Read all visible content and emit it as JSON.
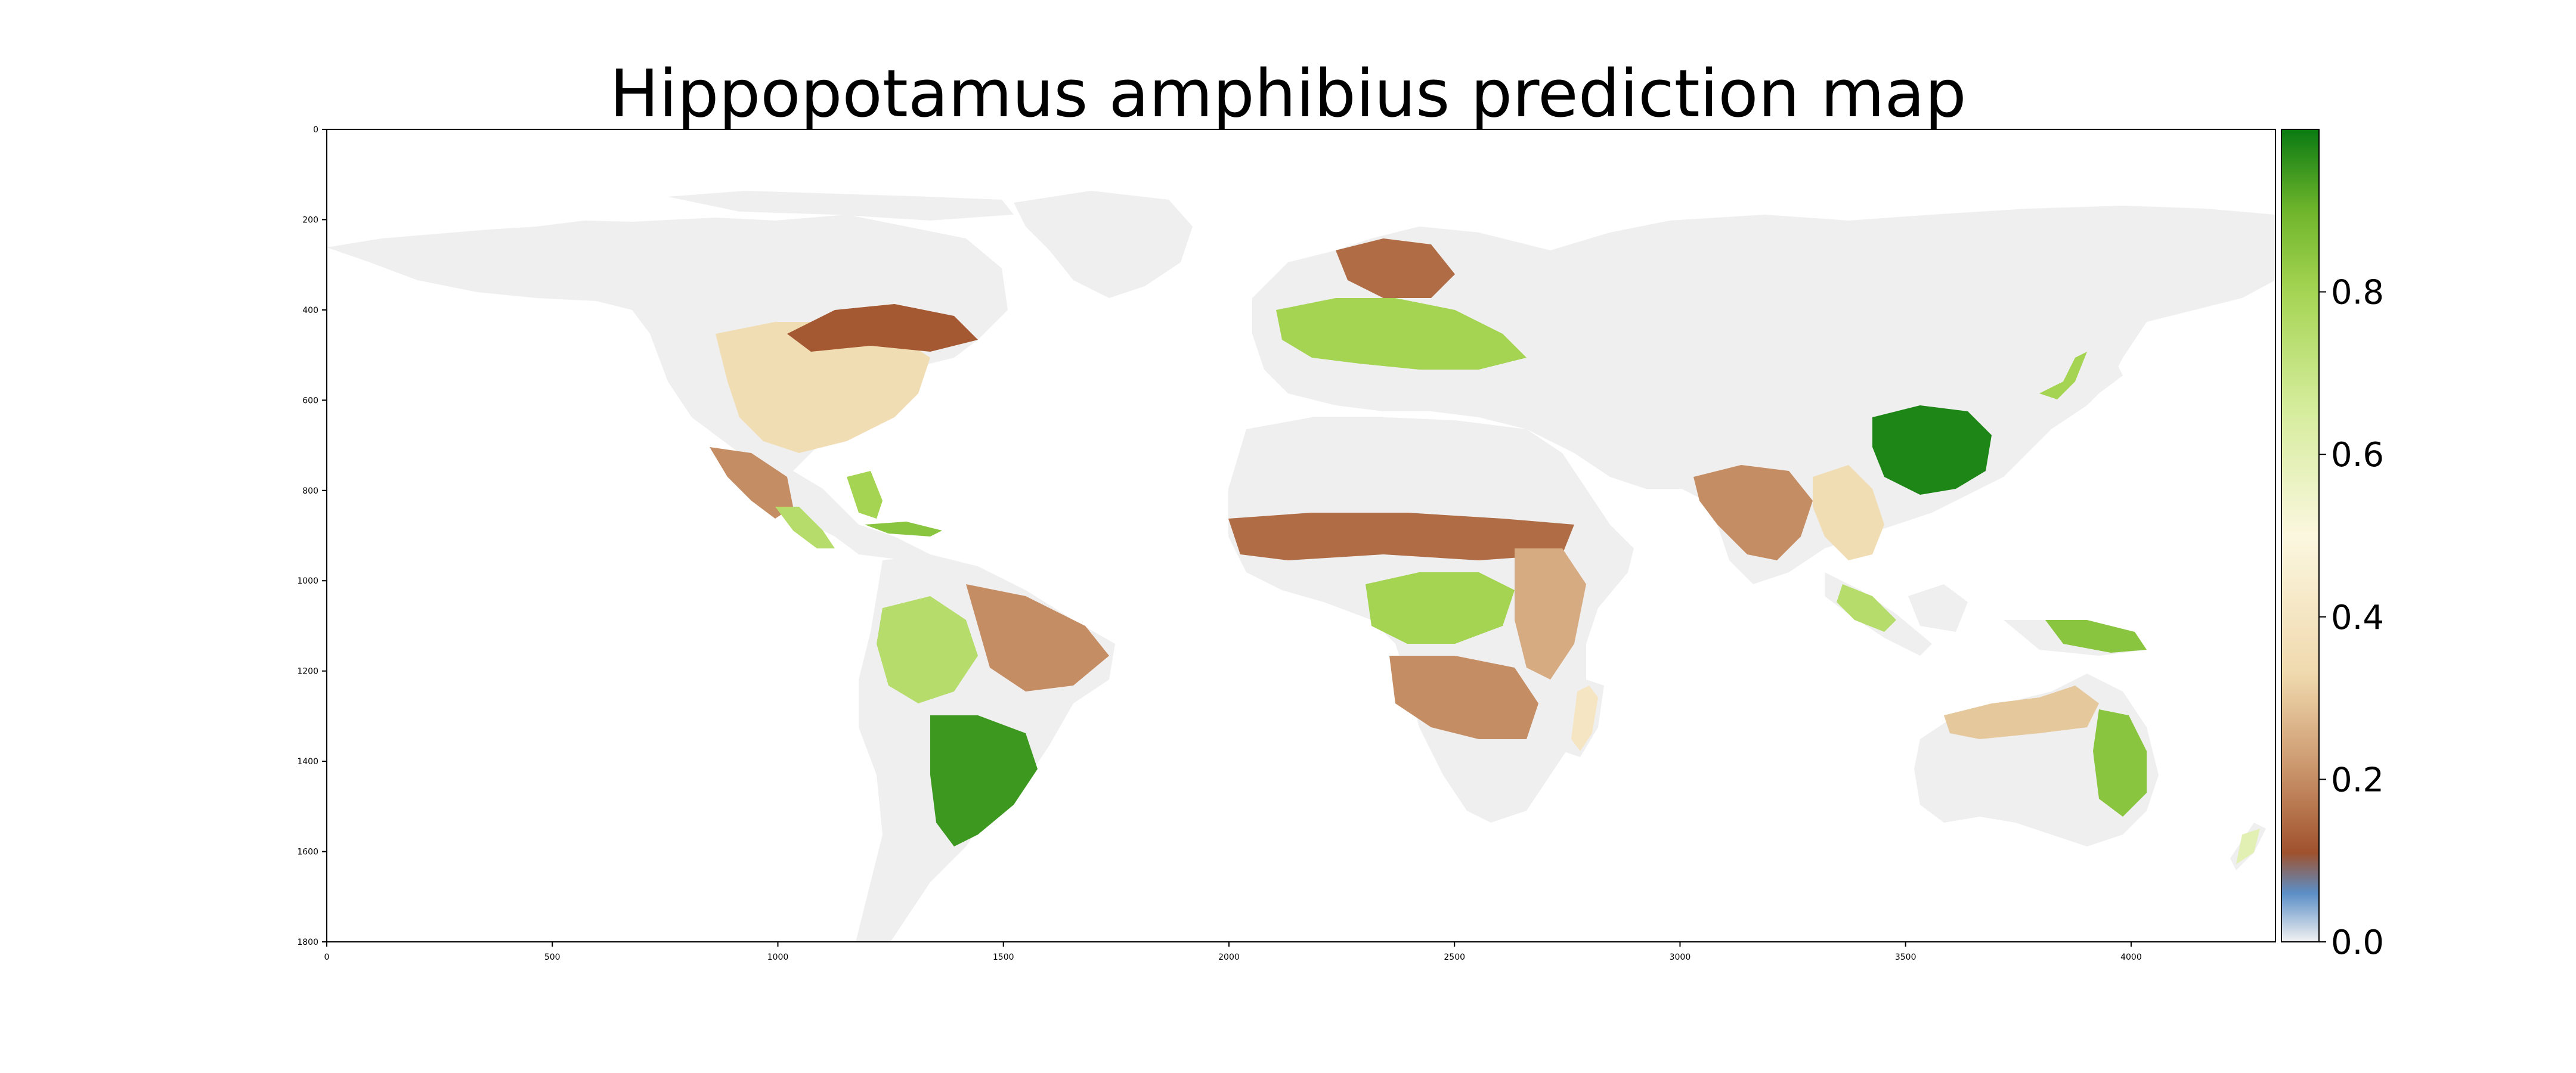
{
  "title": "Hippopotamus amphibius prediction map",
  "map": {
    "x_axis": {
      "range": [
        0,
        4320
      ],
      "ticks": [
        "0",
        "500",
        "1000",
        "1500",
        "2000",
        "2500",
        "3000",
        "3500",
        "4000"
      ]
    },
    "y_axis": {
      "range": [
        0,
        1800
      ],
      "inverted": true,
      "ticks": [
        "0",
        "200",
        "400",
        "600",
        "800",
        "1000",
        "1200",
        "1400",
        "1600",
        "1800"
      ]
    },
    "colors": {
      "no_data_land": "#efefef",
      "ocean": "#ffffff",
      "frame": "#000000"
    }
  },
  "colorbar": {
    "range": [
      0.0,
      1.0
    ],
    "ticks": [
      "0.0",
      "0.2",
      "0.4",
      "0.6",
      "0.8"
    ],
    "stops": [
      {
        "value": 0.0,
        "color": "#f2f2f2"
      },
      {
        "value": 0.06,
        "color": "#5b8ec6"
      },
      {
        "value": 0.11,
        "color": "#a0522d"
      },
      {
        "value": 0.22,
        "color": "#cd9a70"
      },
      {
        "value": 0.33,
        "color": "#f0d9ae"
      },
      {
        "value": 0.5,
        "color": "#fbf7df"
      },
      {
        "value": 0.66,
        "color": "#d4ec9a"
      },
      {
        "value": 0.8,
        "color": "#a5d453"
      },
      {
        "value": 0.9,
        "color": "#6fb52c"
      },
      {
        "value": 1.0,
        "color": "#0a7a12"
      }
    ]
  },
  "regions": [
    {
      "name": "usa-east",
      "value": 0.35
    },
    {
      "name": "great-lakes-canada",
      "value": 0.12
    },
    {
      "name": "florida",
      "value": 0.8
    },
    {
      "name": "mexico",
      "value": 0.2
    },
    {
      "name": "central-america",
      "value": 0.75
    },
    {
      "name": "cuba",
      "value": 0.85
    },
    {
      "name": "amazon-west",
      "value": 0.75
    },
    {
      "name": "amazon-east",
      "value": 0.2
    },
    {
      "name": "brazil-south",
      "value": 0.95
    },
    {
      "name": "europe-west",
      "value": 0.8
    },
    {
      "name": "scandinavia",
      "value": 0.15
    },
    {
      "name": "sahel",
      "value": 0.15
    },
    {
      "name": "congo-basin",
      "value": 0.8
    },
    {
      "name": "east-africa",
      "value": 0.25
    },
    {
      "name": "southern-africa",
      "value": 0.2
    },
    {
      "name": "madagascar",
      "value": 0.4
    },
    {
      "name": "india",
      "value": 0.2
    },
    {
      "name": "southeast-asia",
      "value": 0.35
    },
    {
      "name": "south-china",
      "value": 0.98
    },
    {
      "name": "japan",
      "value": 0.8
    },
    {
      "name": "indonesia",
      "value": 0.75
    },
    {
      "name": "new-guinea",
      "value": 0.85
    },
    {
      "name": "australia-north",
      "value": 0.3
    },
    {
      "name": "australia-east",
      "value": 0.85
    },
    {
      "name": "new-zealand",
      "value": 0.6
    }
  ]
}
